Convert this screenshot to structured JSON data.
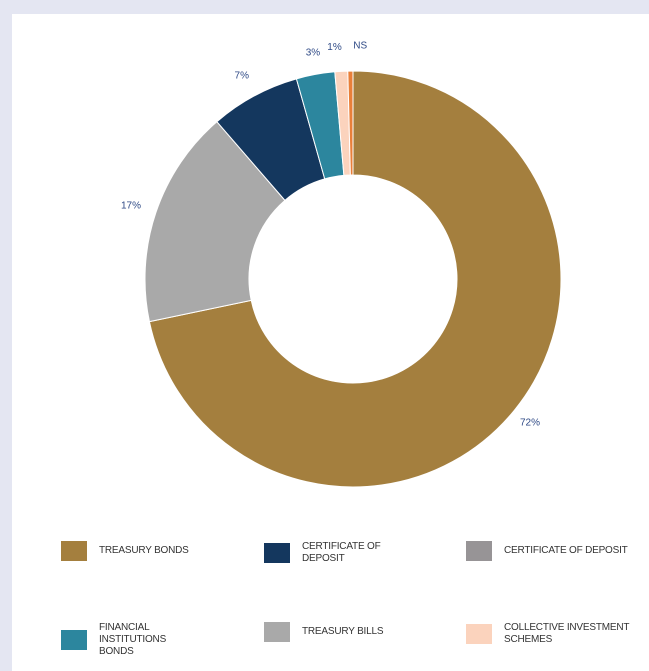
{
  "chart_data": {
    "type": "pie",
    "donut": true,
    "categories": [
      "TREASURY BONDS",
      "CERTIFICATE OF DEPOSIT",
      "CERTIFICATE OF DEPOSIT",
      "FINANCIAL INSTITUTIONS BONDS",
      "TREASURY BILLS",
      "COLLECTIVE INVESTMENT SCHEMES"
    ],
    "slices": [
      {
        "name": "Treasury Bonds",
        "value": 72,
        "label": "72%",
        "color": "#a47f3e"
      },
      {
        "name": "Treasury Bills",
        "value": 17,
        "label": "17%",
        "color": "#a9a9a9"
      },
      {
        "name": "Certificate of Deposit",
        "value": 7,
        "label": "7%",
        "color": "#14375e"
      },
      {
        "name": "Financial Institutions Bonds",
        "value": 3,
        "label": "3%",
        "color": "#2c869e"
      },
      {
        "name": "Collective Investment Schemes",
        "value": 1,
        "label": "1%",
        "color": "#fbd3bd"
      },
      {
        "name": "NS",
        "value": 0.4,
        "label": "NS",
        "color": "#e97f39"
      }
    ],
    "legend": [
      {
        "label": "TREASURY BONDS",
        "color": "#a47f3e"
      },
      {
        "label": "CERTIFICATE OF DEPOSIT",
        "color": "#14375e"
      },
      {
        "label": "CERTIFICATE OF DEPOSIT",
        "color": "#979496"
      },
      {
        "label": "FINANCIAL INSTITUTIONS BONDS",
        "color": "#2c869e"
      },
      {
        "label": "TREASURY BILLS",
        "color": "#a9a9a9"
      },
      {
        "label": "COLLECTIVE INVESTMENT SCHEMES",
        "color": "#fbd3bd"
      }
    ],
    "legend_placement": "bottom"
  }
}
